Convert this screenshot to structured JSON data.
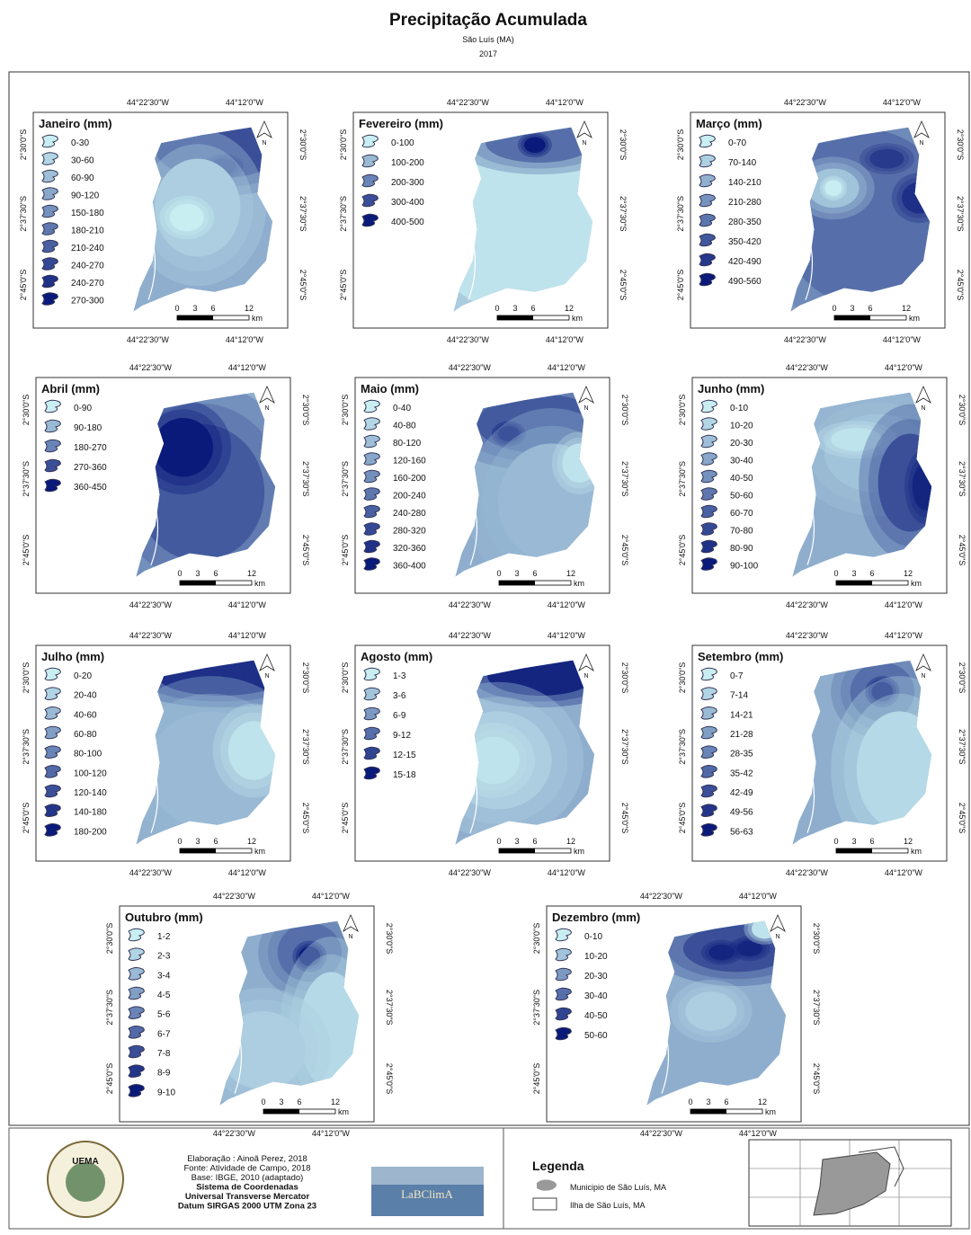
{
  "header": {
    "title": "Precipitação Acumulada",
    "subtitle": "São Luís (MA)",
    "year": "2017"
  },
  "grid_labels": {
    "lon": [
      "44°22'30\"W",
      "44°12'0\"W"
    ],
    "lat": [
      "2°30'0\"S",
      "2°37'30\"S",
      "2°45'0\"S"
    ]
  },
  "scale_bar": {
    "ticks": [
      "0",
      "3",
      "6",
      "12"
    ],
    "unit": "km"
  },
  "north": "N",
  "maps": [
    {
      "title": "Janeiro (mm)",
      "legend": [
        "0-30",
        "30-60",
        "60-90",
        "90-120",
        "150-180",
        "180-210",
        "210-240",
        "240-270",
        "240-270",
        "270-300"
      ]
    },
    {
      "title": "Fevereiro (mm)",
      "legend": [
        "0-100",
        "100-200",
        "200-300",
        "300-400",
        "400-500"
      ]
    },
    {
      "title": "Março (mm)",
      "legend": [
        "0-70",
        "70-140",
        "140-210",
        "210-280",
        "280-350",
        "350-420",
        "420-490",
        "490-560"
      ]
    },
    {
      "title": "Abril (mm)",
      "legend": [
        "0-90",
        "90-180",
        "180-270",
        "270-360",
        "360-450"
      ]
    },
    {
      "title": "Maio (mm)",
      "legend": [
        "0-40",
        "40-80",
        "80-120",
        "120-160",
        "160-200",
        "200-240",
        "240-280",
        "280-320",
        "320-360",
        "360-400"
      ]
    },
    {
      "title": "Junho (mm)",
      "legend": [
        "0-10",
        "10-20",
        "20-30",
        "30-40",
        "40-50",
        "50-60",
        "60-70",
        "70-80",
        "80-90",
        "90-100"
      ]
    },
    {
      "title": "Julho (mm)",
      "legend": [
        "0-20",
        "20-40",
        "40-60",
        "60-80",
        "80-100",
        "100-120",
        "120-140",
        "140-180",
        "180-200"
      ]
    },
    {
      "title": "Agosto (mm)",
      "legend": [
        "1-3",
        "3-6",
        "6-9",
        "9-12",
        "12-15",
        "15-18"
      ]
    },
    {
      "title": "Setembro (mm)",
      "legend": [
        "0-7",
        "7-14",
        "14-21",
        "21-28",
        "28-35",
        "35-42",
        "42-49",
        "49-56",
        "56-63"
      ]
    },
    {
      "title": "Outubro (mm)",
      "legend": [
        "1-2",
        "2-3",
        "3-4",
        "4-5",
        "5-6",
        "6-7",
        "7-8",
        "8-9",
        "9-10"
      ]
    },
    {
      "title": "Dezembro (mm)",
      "legend": [
        "0-10",
        "10-20",
        "20-30",
        "30-40",
        "40-50",
        "50-60"
      ]
    }
  ],
  "footer": {
    "credits": [
      "Elaboração : Ainoã Perez, 2018",
      "Fonte: Atividade de Campo, 2018",
      "Base: IBGE, 2010 (adaptado)",
      "Sistema de Coordenadas",
      "Universal Transverse Mercator",
      "Datum SIRGAS 2000 UTM Zona 23"
    ],
    "logo_left": "UEMA",
    "logo_right": "LaBClimA",
    "legend_title": "Legenda",
    "legend_items": [
      "Municipio de São Luís, MA",
      "Ilha de São Luís, MA"
    ]
  }
}
